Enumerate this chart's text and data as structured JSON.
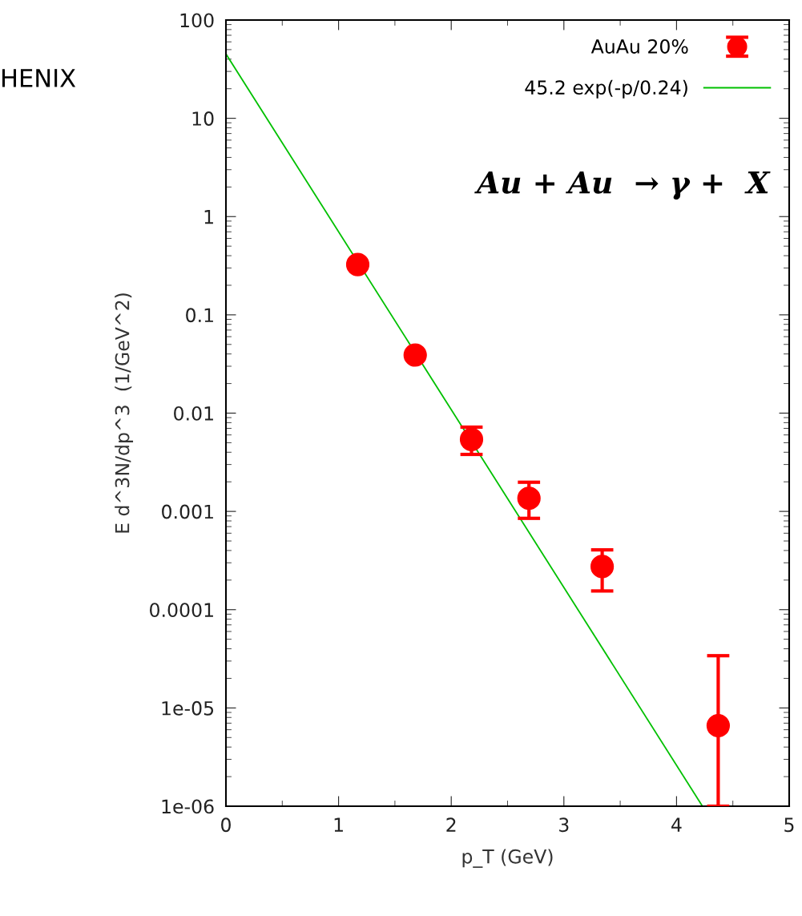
{
  "chart_data": {
    "type": "scatter",
    "xlabel": "p_T (GeV)",
    "ylabel": "E d^3N/dp^3  (1/GeV^2)",
    "series": [
      {
        "name": "AuAu 20%",
        "marker": "circle",
        "color": "#ff0000",
        "x": [
          1.17,
          1.68,
          2.18,
          2.69,
          3.34,
          4.37
        ],
        "values": [
          0.325,
          0.039,
          0.0054,
          0.00136,
          0.000275,
          6.6e-06
        ],
        "errors": [
          null,
          null,
          [
            0.0038,
            0.0072
          ],
          [
            0.00085,
            0.00198
          ],
          [
            0.000155,
            0.000406
          ],
          [
            1e-06,
            3.4e-05
          ]
        ]
      },
      {
        "name": "45.2 exp(-p/0.24)",
        "type": "line",
        "marker": "none",
        "color": "#00c000",
        "x": [
          0,
          4.23
        ],
        "values": [
          45.2,
          1e-06
        ]
      }
    ],
    "annotations": [
      "HENIX",
      "Au + Au  → γ +  X"
    ],
    "xlim": [
      0,
      5
    ],
    "xticks": [
      0,
      1,
      2,
      3,
      4,
      5
    ],
    "ylim": [
      1e-06,
      100
    ],
    "yticks": [
      100,
      10,
      1,
      0.1,
      0.01,
      0.001,
      0.0001,
      1e-05,
      1e-06
    ],
    "log": "y",
    "grid": false,
    "legend": "top right"
  }
}
